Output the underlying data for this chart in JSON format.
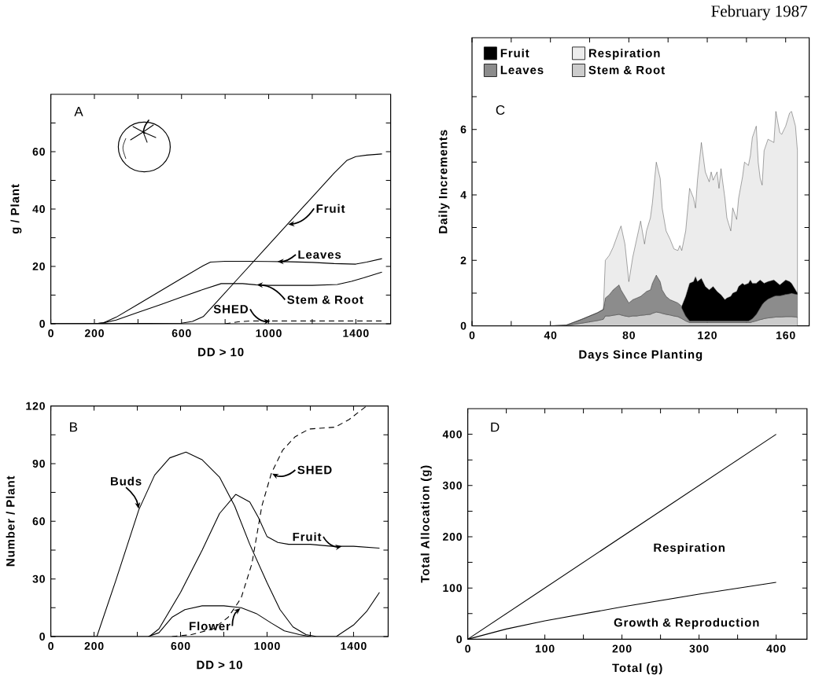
{
  "chart_data": [
    {
      "type": "line",
      "xlabel": "DD > 10",
      "ylabel": "g / Plant",
      "xlim": [
        0,
        1560
      ],
      "ylim": [
        0,
        80
      ],
      "xticks": [
        0,
        200,
        {
          "value": 400,
          "label": null
        },
        600,
        {
          "value": 800,
          "label": null
        },
        1000,
        {
          "value": 1200,
          "label": null
        },
        1400
      ],
      "yticks": [
        0,
        {
          "value": 10,
          "label": null
        },
        20,
        {
          "value": 30,
          "label": null
        },
        40,
        {
          "value": 50,
          "label": null
        },
        60,
        {
          "value": 70,
          "label": null
        }
      ],
      "series": [
        {
          "color": "#000000",
          "x": [
            0,
            600,
            650,
            700,
            760,
            850,
            1000,
            1150,
            1300,
            1360,
            1400,
            1450,
            1520
          ],
          "values": [
            0,
            0.2,
            0.8,
            2.5,
            7.5,
            15,
            27.5,
            40,
            52.5,
            57,
            58.3,
            58.8,
            59.2
          ]
        },
        {
          "color": "#000000",
          "x": [
            0,
            200,
            240,
            300,
            400,
            500,
            600,
            700,
            733,
            800,
            900,
            1000,
            1100,
            1200,
            1300,
            1400,
            1450,
            1520
          ],
          "values": [
            0,
            0,
            0.3,
            2.3,
            6.8,
            11.3,
            15.8,
            20.3,
            21.5,
            21.8,
            21.8,
            21.7,
            21.6,
            21.4,
            21,
            20.8,
            21.5,
            22.7
          ]
        },
        {
          "color": "#000000",
          "x": [
            0,
            200,
            240,
            300,
            400,
            500,
            600,
            700,
            782,
            880,
            940,
            1000,
            1100,
            1200,
            1315,
            1380,
            1436,
            1520
          ],
          "values": [
            0,
            0,
            0.3,
            1.3,
            4,
            6.6,
            9.3,
            12,
            14,
            14,
            13.6,
            13.4,
            13.4,
            13.4,
            13.7,
            14.8,
            16,
            18
          ]
        },
        {
          "color": "#000000",
          "line_style": "dashed",
          "x": [
            800,
            860,
            920,
            1520
          ],
          "values": [
            0,
            0.7,
            1,
            1
          ]
        }
      ],
      "annotations": [
        "A",
        {
          "text": "Fruit",
          "x": 1085,
          "y": 34.6
        },
        {
          "text": "Leaves",
          "x": 1036,
          "y": 21.7
        },
        {
          "text": "Stem & Root",
          "x": 940,
          "y": 13.6
        },
        {
          "text": "SHED",
          "x": 1012,
          "y": 1
        }
      ]
    },
    {
      "type": "line",
      "xlabel": "DD > 10",
      "ylabel": "Number / Plant",
      "xlim": [
        0,
        1560
      ],
      "ylim": [
        0,
        120
      ],
      "xticks": [
        0,
        200,
        {
          "value": 400,
          "label": null
        },
        600,
        {
          "value": 800,
          "label": null
        },
        1000,
        {
          "value": 1200,
          "label": null
        },
        1400
      ],
      "yticks": [
        0,
        {
          "value": 15,
          "label": null
        },
        30,
        {
          "value": 45,
          "label": null
        },
        60,
        {
          "value": 75,
          "label": null
        },
        90,
        {
          "value": 105,
          "label": null
        },
        120
      ],
      "series": [
        {
          "color": "#000000",
          "x": [
            0,
            213,
            300,
            407,
            480,
            550,
            625,
            700,
            780,
            850,
            920,
            1000,
            1060,
            1120,
            1180,
            1230,
            1320,
            1400,
            1460,
            1520
          ],
          "values": [
            0,
            0,
            29,
            66,
            84,
            93,
            96,
            92,
            83,
            68,
            48,
            28,
            14,
            5,
            1,
            0,
            0,
            6,
            13,
            23
          ]
        },
        {
          "color": "#000000",
          "x": [
            0,
            455,
            500,
            600,
            700,
            780,
            855,
            920,
            960,
            1000,
            1050,
            1100,
            1200,
            1300,
            1400,
            1520
          ],
          "values": [
            0,
            0,
            4,
            23,
            45,
            64,
            74,
            70,
            62,
            52,
            49,
            48,
            48,
            47,
            47,
            46
          ]
        },
        {
          "color": "#000000",
          "x": [
            450,
            500,
            560,
            620,
            700,
            800,
            880,
            950,
            1020,
            1080,
            1150,
            1200
          ],
          "values": [
            0,
            2,
            10,
            14,
            16,
            16,
            15,
            12,
            7,
            3,
            1,
            0
          ]
        },
        {
          "color": "#000000",
          "line_style": "dashed",
          "x": [
            560,
            650,
            750,
            820,
            880,
            930,
            976,
            1020,
            1072,
            1130,
            1194,
            1315,
            1380,
            1460
          ],
          "values": [
            0,
            1,
            4,
            10,
            20,
            38,
            68,
            85,
            97,
            104,
            108,
            109,
            113,
            120
          ]
        }
      ],
      "annotations": [
        "B",
        {
          "text": "Buds",
          "x": 407,
          "y": 66
        },
        {
          "text": "SHED",
          "x": 1020,
          "y": 85
        },
        {
          "text": "Fruit",
          "x": 1350,
          "y": 47
        },
        {
          "text": "Flower",
          "x": 880,
          "y": 15
        }
      ]
    },
    {
      "type": "area",
      "stacked": true,
      "legend": "top left",
      "xlabel": "Days Since Planting",
      "ylabel": "Daily Increments",
      "xlim": [
        0,
        172
      ],
      "ylim": [
        0,
        8.8
      ],
      "xticks": [
        0,
        {
          "value": 20,
          "label": null
        },
        40,
        {
          "value": 60,
          "label": null
        },
        80,
        {
          "value": 100,
          "label": null
        },
        120,
        {
          "value": 140,
          "label": null
        },
        160
      ],
      "yticks": [
        0,
        {
          "value": 1,
          "label": null
        },
        2,
        {
          "value": 3,
          "label": null
        },
        4,
        {
          "value": 5,
          "label": null
        },
        6,
        {
          "value": 7,
          "label": null
        }
      ],
      "x": [
        0,
        40,
        48,
        56,
        60,
        64,
        67,
        68,
        70,
        72,
        75,
        76,
        78,
        80,
        82,
        84,
        86,
        88,
        89,
        91,
        92,
        94,
        96,
        97,
        99,
        101,
        103,
        105,
        106,
        107,
        109,
        111,
        113,
        114,
        115,
        117,
        119,
        121,
        122,
        123,
        125,
        126,
        127,
        129,
        130,
        132,
        133,
        135,
        136,
        138,
        139,
        141,
        142,
        143,
        145,
        146,
        147,
        148,
        149,
        151,
        154,
        155,
        157,
        158,
        160,
        162,
        163,
        165,
        166
      ],
      "series": [
        {
          "name": "Stem & Root",
          "color": "#cccccc",
          "values": [
            0,
            0,
            0.01,
            0.08,
            0.12,
            0.16,
            0.2,
            0.3,
            0.3,
            0.32,
            0.35,
            0.33,
            0.3,
            0.28,
            0.3,
            0.3,
            0.32,
            0.33,
            0.34,
            0.35,
            0.38,
            0.42,
            0.4,
            0.38,
            0.35,
            0.33,
            0.3,
            0.28,
            0.25,
            0.22,
            0.15,
            0.1,
            0.1,
            0.1,
            0.1,
            0.1,
            0.1,
            0.1,
            0.1,
            0.1,
            0.1,
            0.1,
            0.1,
            0.1,
            0.1,
            0.1,
            0.1,
            0.1,
            0.1,
            0.1,
            0.1,
            0.1,
            0.1,
            0.12,
            0.15,
            0.17,
            0.19,
            0.2,
            0.22,
            0.24,
            0.26,
            0.27,
            0.27,
            0.27,
            0.28,
            0.28,
            0.28,
            0.27,
            0.26
          ]
        },
        {
          "name": "Leaves",
          "color": "#8c8c8c",
          "values": [
            0,
            0,
            0.01,
            0.12,
            0.18,
            0.24,
            0.3,
            0.55,
            0.65,
            0.78,
            0.9,
            0.77,
            0.6,
            0.42,
            0.5,
            0.55,
            0.58,
            0.67,
            0.71,
            0.75,
            0.92,
            1.13,
            0.95,
            0.72,
            0.55,
            0.47,
            0.45,
            0.42,
            0.4,
            0.33,
            0.15,
            0.05,
            0.05,
            0.05,
            0.05,
            0.05,
            0.05,
            0.05,
            0.05,
            0.05,
            0.05,
            0.05,
            0.05,
            0.05,
            0.05,
            0.05,
            0.05,
            0.05,
            0.05,
            0.05,
            0.05,
            0.05,
            0.08,
            0.1,
            0.2,
            0.28,
            0.36,
            0.45,
            0.5,
            0.58,
            0.64,
            0.65,
            0.65,
            0.66,
            0.68,
            0.7,
            0.72,
            0.7,
            0.7
          ]
        },
        {
          "name": "Fruit",
          "color": "#000000",
          "values": [
            null,
            null,
            null,
            null,
            null,
            null,
            null,
            null,
            null,
            null,
            null,
            null,
            null,
            null,
            null,
            null,
            null,
            null,
            null,
            null,
            null,
            null,
            null,
            null,
            null,
            null,
            null,
            null,
            null,
            0.05,
            0.6,
            1.15,
            1.2,
            1.35,
            1.2,
            1.3,
            1.05,
            0.95,
            1.0,
            1.05,
            0.9,
            0.85,
            0.8,
            0.65,
            0.7,
            0.75,
            0.85,
            0.9,
            1.05,
            1.15,
            1.1,
            1.15,
            1.22,
            1.08,
            0.95,
            0.9,
            0.85,
            0.7,
            0.58,
            0.53,
            0.5,
            0.43,
            0.33,
            0.37,
            0.44,
            0.37,
            0.3,
            0.13,
            0.04
          ]
        },
        {
          "name": "Respiration",
          "color": "#ececec",
          "values": [
            0,
            0,
            0,
            0,
            0,
            0,
            0,
            1.15,
            1.2,
            1.3,
            1.65,
            1.95,
            1.6,
            0.65,
            1.3,
            1.8,
            2.3,
            1.5,
            1.85,
            2.2,
            2.45,
            3.45,
            3.15,
            2.5,
            2.0,
            1.85,
            1.6,
            1.6,
            1.8,
            1.7,
            2.0,
            2.9,
            2.55,
            2.1,
            3.1,
            4.15,
            3.5,
            3.3,
            3.55,
            3.25,
            3.65,
            3.2,
            3.85,
            3.1,
            2.45,
            2.0,
            2.6,
            2.2,
            2.7,
            3.25,
            3.75,
            3.6,
            3.8,
            4.45,
            4.8,
            3.65,
            3.1,
            2.95,
            4.05,
            4.35,
            4.2,
            5.2,
            4.65,
            4.55,
            4.7,
            5.15,
            5.25,
            5.0,
            4.35
          ]
        }
      ],
      "annotations": [
        "C",
        "February 1987"
      ]
    },
    {
      "type": "line",
      "xlabel": "Total (g)",
      "ylabel": "Total Allocation (g)",
      "xlim": [
        0,
        440
      ],
      "ylim": [
        0,
        450
      ],
      "xticks": [
        0,
        {
          "value": 50,
          "label": null
        },
        100,
        {
          "value": 150,
          "label": null
        },
        200,
        {
          "value": 250,
          "label": null
        },
        300,
        {
          "value": 350,
          "label": null
        },
        400
      ],
      "yticks": [
        0,
        {
          "value": 50,
          "label": null
        },
        100,
        {
          "value": 150,
          "label": null
        },
        200,
        {
          "value": 250,
          "label": null
        },
        300,
        {
          "value": 350,
          "label": null
        },
        400
      ],
      "series": [
        {
          "color": "#000000",
          "x": [
            0,
            400
          ],
          "values": [
            0,
            400
          ]
        },
        {
          "color": "#000000",
          "x": [
            0,
            50,
            100,
            200,
            300,
            400
          ],
          "values": [
            0,
            20,
            36,
            63,
            88,
            111
          ]
        }
      ],
      "annotations": [
        "D",
        "Respiration",
        "Growth & Reproduction"
      ]
    }
  ]
}
